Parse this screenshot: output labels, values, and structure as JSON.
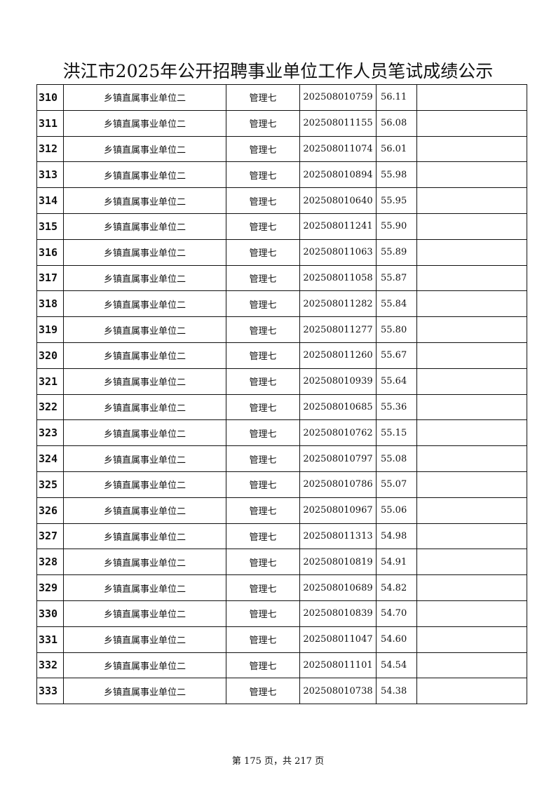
{
  "title": "洪江市2025年公开招聘事业单位工作人员笔试成绩公示",
  "rows": [
    [
      "310",
      "乡镇直属事业单位二",
      "管理七",
      "202508010759",
      "56.11",
      ""
    ],
    [
      "311",
      "乡镇直属事业单位二",
      "管理七",
      "202508011155",
      "56.08",
      ""
    ],
    [
      "312",
      "乡镇直属事业单位二",
      "管理七",
      "202508011074",
      "56.01",
      ""
    ],
    [
      "313",
      "乡镇直属事业单位二",
      "管理七",
      "202508010894",
      "55.98",
      ""
    ],
    [
      "314",
      "乡镇直属事业单位二",
      "管理七",
      "202508010640",
      "55.95",
      ""
    ],
    [
      "315",
      "乡镇直属事业单位二",
      "管理七",
      "202508011241",
      "55.90",
      ""
    ],
    [
      "316",
      "乡镇直属事业单位二",
      "管理七",
      "202508011063",
      "55.89",
      ""
    ],
    [
      "317",
      "乡镇直属事业单位二",
      "管理七",
      "202508011058",
      "55.87",
      ""
    ],
    [
      "318",
      "乡镇直属事业单位二",
      "管理七",
      "202508011282",
      "55.84",
      ""
    ],
    [
      "319",
      "乡镇直属事业单位二",
      "管理七",
      "202508011277",
      "55.80",
      ""
    ],
    [
      "320",
      "乡镇直属事业单位二",
      "管理七",
      "202508011260",
      "55.67",
      ""
    ],
    [
      "321",
      "乡镇直属事业单位二",
      "管理七",
      "202508010939",
      "55.64",
      ""
    ],
    [
      "322",
      "乡镇直属事业单位二",
      "管理七",
      "202508010685",
      "55.36",
      ""
    ],
    [
      "323",
      "乡镇直属事业单位二",
      "管理七",
      "202508010762",
      "55.15",
      ""
    ],
    [
      "324",
      "乡镇直属事业单位二",
      "管理七",
      "202508010797",
      "55.08",
      ""
    ],
    [
      "325",
      "乡镇直属事业单位二",
      "管理七",
      "202508010786",
      "55.07",
      ""
    ],
    [
      "326",
      "乡镇直属事业单位二",
      "管理七",
      "202508010967",
      "55.06",
      ""
    ],
    [
      "327",
      "乡镇直属事业单位二",
      "管理七",
      "202508011313",
      "54.98",
      ""
    ],
    [
      "328",
      "乡镇直属事业单位二",
      "管理七",
      "202508010819",
      "54.91",
      ""
    ],
    [
      "329",
      "乡镇直属事业单位二",
      "管理七",
      "202508010689",
      "54.82",
      ""
    ],
    [
      "330",
      "乡镇直属事业单位二",
      "管理七",
      "202508010839",
      "54.70",
      ""
    ],
    [
      "331",
      "乡镇直属事业单位二",
      "管理七",
      "202508011047",
      "54.60",
      ""
    ],
    [
      "332",
      "乡镇直属事业单位二",
      "管理七",
      "202508011101",
      "54.54",
      ""
    ],
    [
      "333",
      "乡镇直属事业单位二",
      "管理七",
      "202508010738",
      "54.38",
      ""
    ]
  ],
  "footer": "第 175 页，共 217 页"
}
